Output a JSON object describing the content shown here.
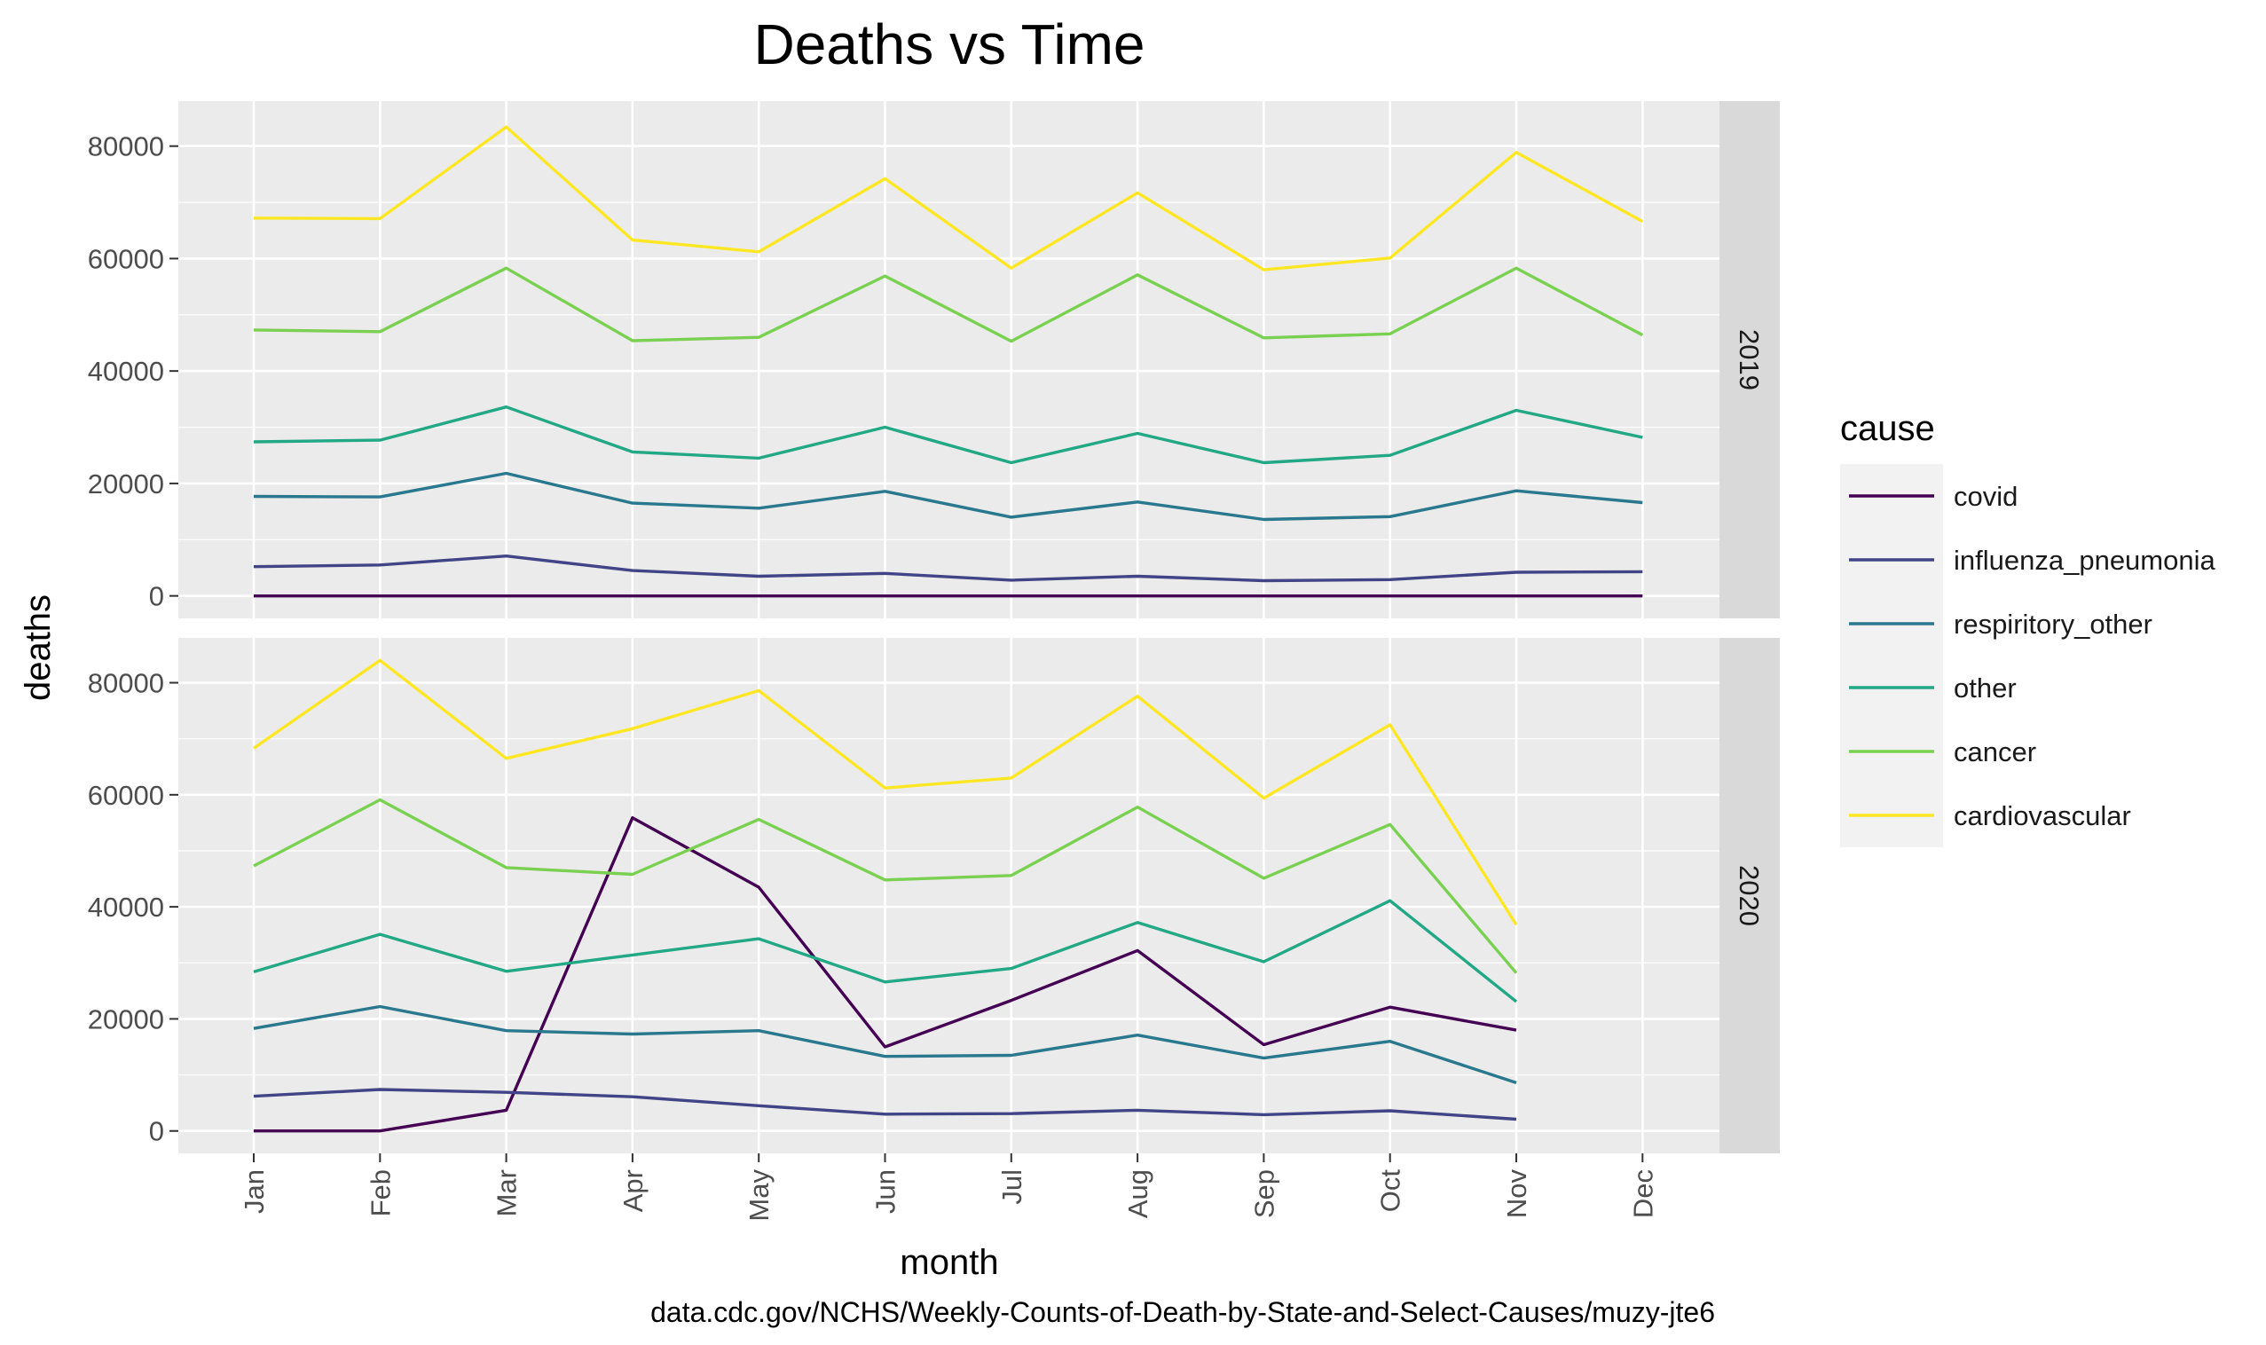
{
  "chart_data": {
    "type": "line",
    "title": "Deaths vs Time",
    "xlabel": "month",
    "ylabel": "deaths",
    "caption": "data.cdc.gov/NCHS/Weekly-Counts-of-Death-by-State-and-Select-Causes/muzy-jte6",
    "categories": [
      "Jan",
      "Feb",
      "Mar",
      "Apr",
      "May",
      "Jun",
      "Jul",
      "Aug",
      "Sep",
      "Oct",
      "Nov",
      "Dec"
    ],
    "ylim": [
      -4000,
      88000
    ],
    "yticks": [
      0,
      20000,
      40000,
      60000,
      80000
    ],
    "grid": true,
    "legend": {
      "title": "cause",
      "position": "right"
    },
    "series_colors": {
      "covid": "#440154",
      "influenza_pneumonia": "#414487",
      "respiritory_other": "#2A788E",
      "other": "#22A884",
      "cancer": "#7AD151",
      "cardiovascular": "#FDE725"
    },
    "panels": [
      {
        "label": "2019",
        "series": [
          {
            "name": "covid",
            "values": [
              0,
              0,
              0,
              0,
              0,
              0,
              0,
              0,
              0,
              0,
              0,
              0
            ]
          },
          {
            "name": "influenza_pneumonia",
            "values": [
              5200,
              5500,
              7100,
              4500,
              3500,
              4000,
              2800,
              3500,
              2700,
              2900,
              4200,
              4300
            ]
          },
          {
            "name": "respiritory_other",
            "values": [
              17700,
              17600,
              21800,
              16500,
              15600,
              18600,
              14000,
              16700,
              13600,
              14100,
              18700,
              16600
            ]
          },
          {
            "name": "other",
            "values": [
              27400,
              27700,
              33600,
              25600,
              24500,
              30000,
              23700,
              28900,
              23700,
              25000,
              33000,
              28200
            ]
          },
          {
            "name": "cancer",
            "values": [
              47300,
              47000,
              58300,
              45400,
              46000,
              56900,
              45300,
              57100,
              45900,
              46600,
              58300,
              46400
            ]
          },
          {
            "name": "cardiovascular",
            "values": [
              67200,
              67100,
              83400,
              63300,
              61200,
              74200,
              58300,
              71700,
              58000,
              60100,
              78900,
              66600
            ]
          }
        ]
      },
      {
        "label": "2020",
        "series": [
          {
            "name": "covid",
            "values": [
              0,
              0,
              3700,
              55900,
              43500,
              15000,
              23300,
              32200,
              15400,
              22100,
              18000,
              null
            ]
          },
          {
            "name": "influenza_pneumonia",
            "values": [
              6200,
              7400,
              6900,
              6100,
              4500,
              3000,
              3100,
              3700,
              2900,
              3600,
              2100,
              null
            ]
          },
          {
            "name": "respiritory_other",
            "values": [
              18300,
              22200,
              17900,
              17300,
              17900,
              13300,
              13500,
              17100,
              13000,
              16000,
              8600,
              null
            ]
          },
          {
            "name": "other",
            "values": [
              28400,
              35100,
              28500,
              31400,
              34300,
              26600,
              29000,
              37200,
              30200,
              41100,
              23100,
              null
            ]
          },
          {
            "name": "cancer",
            "values": [
              47300,
              59100,
              47000,
              45800,
              55600,
              44800,
              45600,
              57800,
              45100,
              54700,
              28200,
              null
            ]
          },
          {
            "name": "cardiovascular",
            "values": [
              68300,
              84000,
              66500,
              71800,
              78600,
              61200,
              63000,
              77600,
              59400,
              72500,
              36800,
              null
            ]
          }
        ]
      }
    ]
  }
}
